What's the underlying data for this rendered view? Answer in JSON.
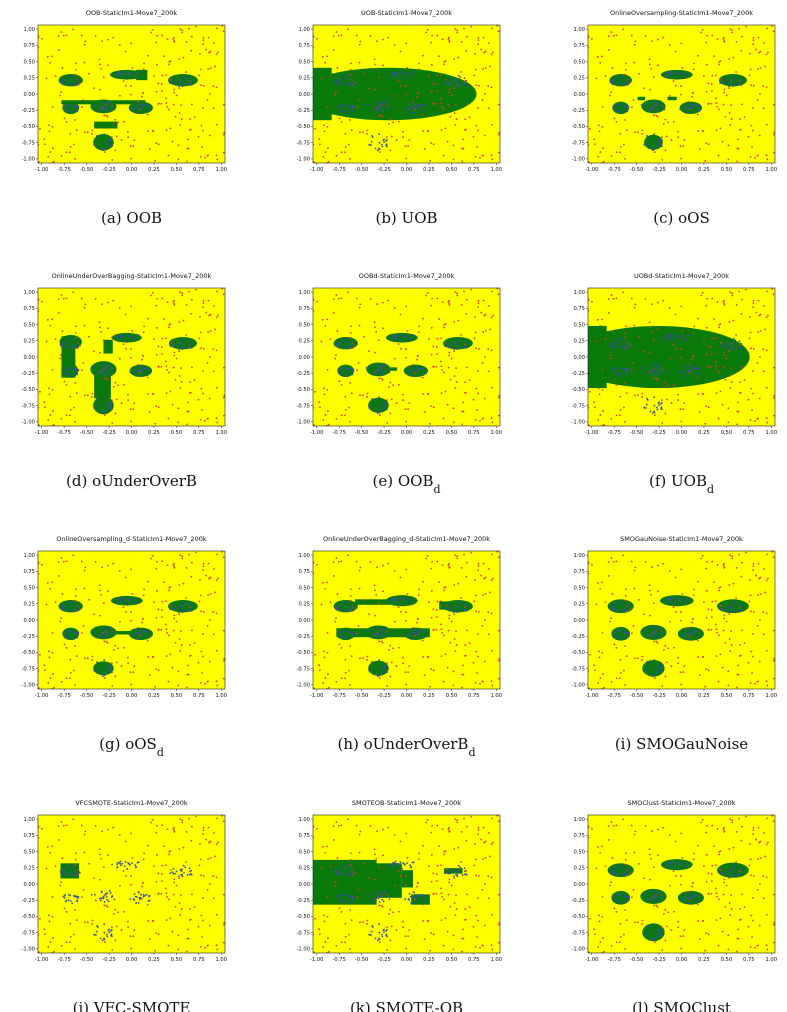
{
  "figure": {
    "panels": [
      {
        "title": "OOB-StaticIm1-Move7_200k",
        "caption_label": "(a)",
        "caption_text": "OOB",
        "caption_sub": ""
      },
      {
        "title": "UOB-StaticIm1-Move7_200k",
        "caption_label": "(b)",
        "caption_text": "UOB",
        "caption_sub": ""
      },
      {
        "title": "OnlineOversampling-StaticIm1-Move7_200k",
        "caption_label": "(c)",
        "caption_text": "oOS",
        "caption_sub": ""
      },
      {
        "title": "OnlineUnderOverBagging-StaticIm1-Move7_200k",
        "caption_label": "(d)",
        "caption_text": "oUnderOverB",
        "caption_sub": ""
      },
      {
        "title": "OOBd-StaticIm1-Move7_200k",
        "caption_label": "(e)",
        "caption_text": "OOB",
        "caption_sub": "d"
      },
      {
        "title": "UOBd-StaticIm1-Move7_200k",
        "caption_label": "(f)",
        "caption_text": "UOB",
        "caption_sub": "d"
      },
      {
        "title": "OnlineOversampling_d-StaticIm1-Move7_200k",
        "caption_label": "(g)",
        "caption_text": "oOS",
        "caption_sub": "d"
      },
      {
        "title": "OnlineUnderOverBagging_d-StaticIm1-Move7_200k",
        "caption_label": "(h)",
        "caption_text": "oUnderOverB",
        "caption_sub": "d"
      },
      {
        "title": "SMOGauNoise-StaticIm1-Move7_200k",
        "caption_label": "(i)",
        "caption_text": "SMOGauNoise",
        "caption_sub": ""
      },
      {
        "title": "VFCSMOTE-StaticIm1-Move7_200k",
        "caption_label": "(j)",
        "caption_text": "VFC-SMOTE",
        "caption_sub": ""
      },
      {
        "title": "SMOTEOB-StaticIm1-Move7_200k",
        "caption_label": "(k)",
        "caption_text": "SMOTE-OB",
        "caption_sub": ""
      },
      {
        "title": "SMOClust-StaticIm1-Move7_200k",
        "caption_label": "(l)",
        "caption_text": "SMOClust",
        "caption_sub": ""
      }
    ]
  },
  "colors": {
    "background_region": "#ffff00",
    "minority_region": "#0a7a0a",
    "majority_points": "#e23b2a",
    "minority_points": "#3a4ea8"
  },
  "chart_data": {
    "type": "scatter",
    "x_ticks": [
      "-1.00",
      "-0.75",
      "-0.50",
      "-0.25",
      "0.00",
      "0.25",
      "0.50",
      "0.75",
      "1.00"
    ],
    "y_ticks": [
      "1.00",
      "0.75",
      "0.50",
      "0.25",
      "0.00",
      "-0.25",
      "-0.50",
      "-0.75",
      "-1.00"
    ],
    "xlim": [
      -1,
      1
    ],
    "ylim": [
      -1,
      1
    ],
    "grid": false,
    "minority_clusters": [
      {
        "cx": -0.65,
        "cy": 0.2,
        "rx": 0.13,
        "ry": 0.09
      },
      {
        "cx": -0.05,
        "cy": 0.28,
        "rx": 0.17,
        "ry": 0.07
      },
      {
        "cx": 0.55,
        "cy": 0.2,
        "rx": 0.16,
        "ry": 0.09
      },
      {
        "cx": -0.65,
        "cy": -0.2,
        "rx": 0.09,
        "ry": 0.09
      },
      {
        "cx": -0.3,
        "cy": -0.18,
        "rx": 0.13,
        "ry": 0.1
      },
      {
        "cx": 0.1,
        "cy": -0.2,
        "rx": 0.13,
        "ry": 0.09
      },
      {
        "cx": -0.3,
        "cy": -0.7,
        "rx": 0.11,
        "ry": 0.12
      }
    ],
    "decision_regions": [
      {
        "panel": "a",
        "ellipses": [
          [
            -0.65,
            0.2,
            0.13,
            0.09
          ],
          [
            -0.05,
            0.28,
            0.18,
            0.07
          ],
          [
            0.55,
            0.2,
            0.16,
            0.09
          ],
          [
            -0.65,
            -0.2,
            0.09,
            0.09
          ],
          [
            -0.3,
            -0.18,
            0.14,
            0.1
          ],
          [
            0.1,
            -0.2,
            0.13,
            0.09
          ],
          [
            -0.3,
            -0.7,
            0.11,
            0.12
          ]
        ],
        "rects": [
          [
            -0.75,
            -0.15,
            0.9,
            0.06
          ],
          [
            -0.4,
            -0.5,
            0.25,
            0.1
          ],
          [
            0.05,
            0.2,
            0.12,
            0.15
          ]
        ]
      },
      {
        "panel": "b",
        "ellipses": [
          [
            -0.2,
            0.0,
            0.95,
            0.38
          ]
        ],
        "rects": [
          [
            -1.0,
            -0.38,
            0.2,
            0.76
          ]
        ]
      },
      {
        "panel": "c",
        "ellipses": [
          [
            -0.65,
            0.2,
            0.12,
            0.09
          ],
          [
            -0.05,
            0.28,
            0.17,
            0.07
          ],
          [
            0.55,
            0.2,
            0.15,
            0.09
          ],
          [
            -0.65,
            -0.2,
            0.09,
            0.09
          ],
          [
            -0.3,
            -0.18,
            0.13,
            0.1
          ],
          [
            0.1,
            -0.2,
            0.12,
            0.09
          ],
          [
            -0.3,
            -0.7,
            0.1,
            0.11
          ]
        ],
        "rects": [
          [
            -0.47,
            -0.09,
            0.08,
            0.05
          ],
          [
            -0.15,
            -0.09,
            0.1,
            0.05
          ]
        ]
      },
      {
        "panel": "d",
        "ellipses": [
          [
            -0.65,
            0.22,
            0.12,
            0.1
          ],
          [
            -0.05,
            0.28,
            0.16,
            0.07
          ],
          [
            0.55,
            0.2,
            0.15,
            0.09
          ],
          [
            -0.65,
            -0.2,
            0.08,
            0.1
          ],
          [
            -0.3,
            -0.18,
            0.14,
            0.12
          ],
          [
            0.1,
            -0.2,
            0.12,
            0.09
          ],
          [
            -0.3,
            -0.7,
            0.11,
            0.13
          ]
        ],
        "rects": [
          [
            -0.75,
            -0.3,
            0.15,
            0.6
          ],
          [
            -0.4,
            -0.6,
            0.18,
            0.5
          ],
          [
            -0.3,
            0.05,
            0.1,
            0.2
          ]
        ]
      },
      {
        "panel": "e",
        "ellipses": [
          [
            -0.65,
            0.2,
            0.13,
            0.09
          ],
          [
            -0.05,
            0.28,
            0.17,
            0.07
          ],
          [
            0.55,
            0.2,
            0.16,
            0.09
          ],
          [
            -0.65,
            -0.2,
            0.09,
            0.09
          ],
          [
            -0.3,
            -0.18,
            0.13,
            0.1
          ],
          [
            0.1,
            -0.2,
            0.13,
            0.09
          ],
          [
            -0.3,
            -0.7,
            0.11,
            0.11
          ]
        ],
        "rects": [
          [
            -0.4,
            -0.2,
            0.3,
            0.05
          ],
          [
            -0.12,
            0.22,
            0.15,
            0.12
          ]
        ]
      },
      {
        "panel": "f",
        "ellipses": [
          [
            -0.25,
            0.0,
            0.98,
            0.45
          ]
        ],
        "rects": [
          [
            -1.0,
            -0.45,
            0.2,
            0.9
          ]
        ]
      },
      {
        "panel": "g",
        "ellipses": [
          [
            -0.65,
            0.2,
            0.13,
            0.09
          ],
          [
            -0.05,
            0.28,
            0.17,
            0.07
          ],
          [
            0.55,
            0.2,
            0.16,
            0.09
          ],
          [
            -0.65,
            -0.2,
            0.09,
            0.09
          ],
          [
            -0.3,
            -0.18,
            0.14,
            0.1
          ],
          [
            0.1,
            -0.2,
            0.13,
            0.09
          ],
          [
            -0.3,
            -0.7,
            0.11,
            0.1
          ]
        ],
        "rects": [
          [
            -0.2,
            -0.21,
            0.25,
            0.05
          ]
        ]
      },
      {
        "panel": "h",
        "ellipses": [
          [
            -0.65,
            0.2,
            0.13,
            0.09
          ],
          [
            -0.05,
            0.28,
            0.17,
            0.08
          ],
          [
            0.55,
            0.2,
            0.16,
            0.09
          ],
          [
            -0.65,
            -0.2,
            0.1,
            0.09
          ],
          [
            -0.3,
            -0.18,
            0.14,
            0.1
          ],
          [
            0.1,
            -0.2,
            0.13,
            0.09
          ],
          [
            -0.3,
            -0.7,
            0.11,
            0.11
          ]
        ],
        "rects": [
          [
            -0.55,
            0.22,
            0.5,
            0.08
          ],
          [
            -0.75,
            -0.25,
            1.0,
            0.13
          ],
          [
            0.35,
            0.15,
            0.3,
            0.12
          ]
        ]
      },
      {
        "panel": "i",
        "ellipses": [
          [
            -0.65,
            0.2,
            0.14,
            0.1
          ],
          [
            -0.05,
            0.28,
            0.18,
            0.08
          ],
          [
            0.55,
            0.2,
            0.17,
            0.1
          ],
          [
            -0.65,
            -0.2,
            0.1,
            0.1
          ],
          [
            -0.3,
            -0.18,
            0.14,
            0.11
          ],
          [
            0.1,
            -0.2,
            0.14,
            0.1
          ],
          [
            -0.3,
            -0.7,
            0.12,
            0.12
          ]
        ],
        "rects": []
      },
      {
        "panel": "j",
        "ellipses": [],
        "rects": [
          [
            -0.76,
            0.08,
            0.2,
            0.22
          ]
        ]
      },
      {
        "panel": "k",
        "ellipses": [],
        "rects": [
          [
            -1.0,
            -0.3,
            0.68,
            0.65
          ],
          [
            -0.35,
            -0.2,
            0.3,
            0.5
          ],
          [
            -0.05,
            -0.05,
            0.12,
            0.25
          ],
          [
            0.05,
            -0.3,
            0.2,
            0.15
          ],
          [
            0.4,
            0.15,
            0.2,
            0.08
          ]
        ]
      },
      {
        "panel": "l",
        "ellipses": [
          [
            -0.65,
            0.2,
            0.14,
            0.1
          ],
          [
            -0.05,
            0.28,
            0.17,
            0.08
          ],
          [
            0.55,
            0.2,
            0.17,
            0.11
          ],
          [
            -0.65,
            -0.2,
            0.1,
            0.1
          ],
          [
            -0.3,
            -0.18,
            0.14,
            0.11
          ],
          [
            0.1,
            -0.2,
            0.14,
            0.1
          ],
          [
            -0.3,
            -0.7,
            0.12,
            0.13
          ]
        ],
        "rects": []
      }
    ]
  }
}
